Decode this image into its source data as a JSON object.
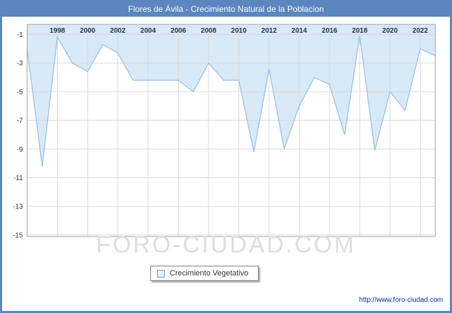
{
  "header": {
    "title": "Flores de Ávila - Crecimiento Natural de la Poblacion"
  },
  "legend": {
    "label": "Crecimiento Vegetativo"
  },
  "footer": {
    "watermark": "FORO-CIUDAD.COM",
    "url": "http://www.foro-ciudad.com"
  },
  "colors": {
    "frame": "#5b86bf",
    "fill": "#d8e9f8",
    "line": "#9cc0e5",
    "grid": "#d9d9d9",
    "plot_border": "#a0a0a0",
    "tick_text": "#333333",
    "year_text": "#1f3050"
  },
  "chart_data": {
    "type": "area",
    "title": "Flores de Ávila - Crecimiento Natural de la Poblacion",
    "xlabel": "",
    "ylabel": "",
    "x": [
      1996,
      1997,
      1998,
      1999,
      2000,
      2001,
      2002,
      2003,
      2004,
      2005,
      2006,
      2007,
      2008,
      2009,
      2010,
      2011,
      2012,
      2013,
      2014,
      2015,
      2016,
      2017,
      2018,
      2019,
      2020,
      2021,
      2022,
      2023
    ],
    "series": [
      {
        "name": "Crecimiento Vegetativo",
        "values": [
          -2.0,
          -10.2,
          -1.2,
          -3.0,
          -3.6,
          -1.7,
          -2.3,
          -4.2,
          -4.2,
          -4.2,
          -4.2,
          -5.0,
          -3.0,
          -4.2,
          -4.2,
          -9.2,
          -3.4,
          -9.0,
          -6.0,
          -4.0,
          -4.5,
          -8.0,
          -1.1,
          -9.1,
          -5.0,
          -6.3,
          -2.0,
          -2.5
        ]
      }
    ],
    "ylim": [
      -15.1,
      -0.3
    ],
    "yticks": [
      -1,
      -3,
      -5,
      -7,
      -9,
      -11,
      -13,
      -15
    ],
    "xtick_labels": [
      "1998",
      "2000",
      "2002",
      "2004",
      "2006",
      "2008",
      "2010",
      "2012",
      "2014",
      "2016",
      "2018",
      "2020",
      "2022"
    ],
    "grid": true,
    "legend_position": "bottom",
    "fill_above_line": true
  }
}
